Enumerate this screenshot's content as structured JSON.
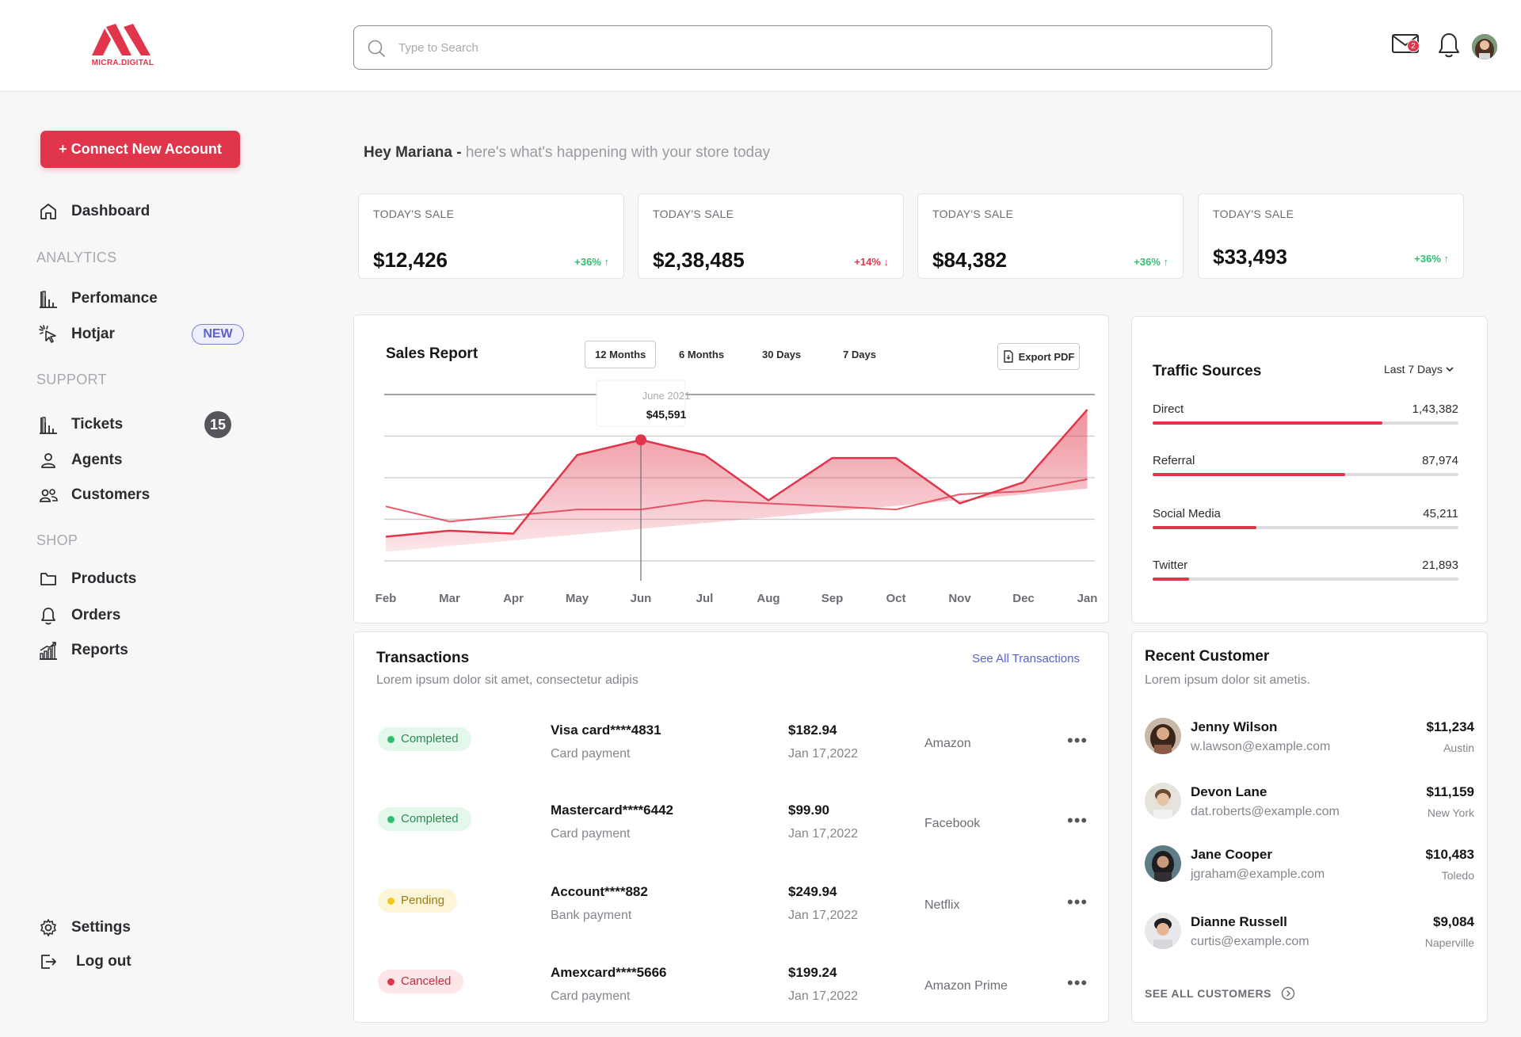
{
  "brand": {
    "name": "MICRA.DIGITAL",
    "accent": "#e0354a"
  },
  "search": {
    "placeholder": "Type to Search",
    "value": ""
  },
  "header": {
    "mail_count": "2"
  },
  "sidebar": {
    "connect_label": "+ Connect New Account",
    "dashboard": "Dashboard",
    "section_analytics": "ANALYTICS",
    "performance": "Perfomance",
    "hotjar": "Hotjar",
    "hotjar_badge": "NEW",
    "section_support": "SUPPORT",
    "tickets": "Tickets",
    "tickets_count": "15",
    "agents": "Agents",
    "customers": "Customers",
    "section_shop": "SHOP",
    "products": "Products",
    "orders": "Orders",
    "reports": "Reports",
    "settings": "Settings",
    "logout": "Log out"
  },
  "greeting": {
    "name": "Hey Mariana -",
    "text": "here's what's happening with your store today"
  },
  "stats": [
    {
      "label": "TODAY'S SALE",
      "value": "$12,426",
      "change": "+36% ↑",
      "trend": "up"
    },
    {
      "label": "TODAY'S SALE",
      "value": "$2,38,485",
      "change": "+14% ↓",
      "trend": "down"
    },
    {
      "label": "TODAY'S SALE",
      "value": "$84,382",
      "change": "+36% ↑",
      "trend": "up"
    },
    {
      "label": "TODAY'S SALE",
      "value": "$33,493",
      "change": "+36% ↑",
      "trend": "up"
    }
  ],
  "sales_report": {
    "title": "Sales Report",
    "ranges": [
      "12 Months",
      "6 Months",
      "30 Days",
      "7 Days"
    ],
    "active_range": "12 Months",
    "export_label": "Export PDF",
    "tooltip_date": "June 2021",
    "tooltip_value": "$45,591"
  },
  "chart_data": {
    "type": "area",
    "title": "Sales Report",
    "categories": [
      "Feb",
      "Mar",
      "Apr",
      "May",
      "Jun",
      "Jul",
      "Aug",
      "Sep",
      "Oct",
      "Nov",
      "Dec",
      "Jan"
    ],
    "series": [
      {
        "values": [
          8,
          10,
          9,
          35,
          40,
          35,
          20,
          34,
          34,
          19,
          26,
          50
        ]
      },
      {
        "values": [
          18,
          13,
          15,
          17,
          17,
          20,
          19,
          18,
          17,
          22,
          23,
          27
        ]
      }
    ],
    "ylim": [
      0,
      55
    ],
    "grid": true,
    "highlight": {
      "category": "Jun",
      "label": "June 2021",
      "value": "$45,591"
    }
  },
  "traffic": {
    "title": "Traffic Sources",
    "range": "Last 7 Days",
    "items": [
      {
        "label": "Direct",
        "value": "1,43,382",
        "share": 0.75
      },
      {
        "label": "Referral",
        "value": "87,974",
        "share": 0.63
      },
      {
        "label": "Social Media",
        "value": "45,211",
        "share": 0.34
      },
      {
        "label": "Twitter",
        "value": "21,893",
        "share": 0.12
      }
    ]
  },
  "transactions": {
    "title": "Transactions",
    "subtitle": "Lorem ipsum dolor sit amet, consectetur adipis",
    "see_all": "See All Transactions",
    "rows": [
      {
        "status": "Completed",
        "card": "Visa card****4831",
        "type": "Card payment",
        "amount": "$182.94",
        "date": "Jan 17,2022",
        "merchant": "Amazon"
      },
      {
        "status": "Completed",
        "card": "Mastercard****6442",
        "type": "Card payment",
        "amount": "$99.90",
        "date": "Jan 17,2022",
        "merchant": "Facebook"
      },
      {
        "status": "Pending",
        "card": "Account****882",
        "type": "Bank payment",
        "amount": "$249.94",
        "date": "Jan 17,2022",
        "merchant": "Netflix"
      },
      {
        "status": "Canceled",
        "card": "Amexcard****5666",
        "type": "Card payment",
        "amount": "$199.24",
        "date": "Jan 17,2022",
        "merchant": "Amazon Prime"
      }
    ]
  },
  "recent_customers": {
    "title": "Recent Customer",
    "subtitle": "Lorem ipsum dolor sit ametis.",
    "see_all": "SEE ALL CUSTOMERS",
    "rows": [
      {
        "name": "Jenny Wilson",
        "email": "w.lawson@example.com",
        "amount": "$11,234",
        "city": "Austin"
      },
      {
        "name": "Devon Lane",
        "email": "dat.roberts@example.com",
        "amount": "$11,159",
        "city": "New York"
      },
      {
        "name": "Jane Cooper",
        "email": "jgraham@example.com",
        "amount": "$10,483",
        "city": "Toledo"
      },
      {
        "name": "Dianne Russell",
        "email": "curtis@example.com",
        "amount": "$9,084",
        "city": "Naperville"
      }
    ]
  }
}
